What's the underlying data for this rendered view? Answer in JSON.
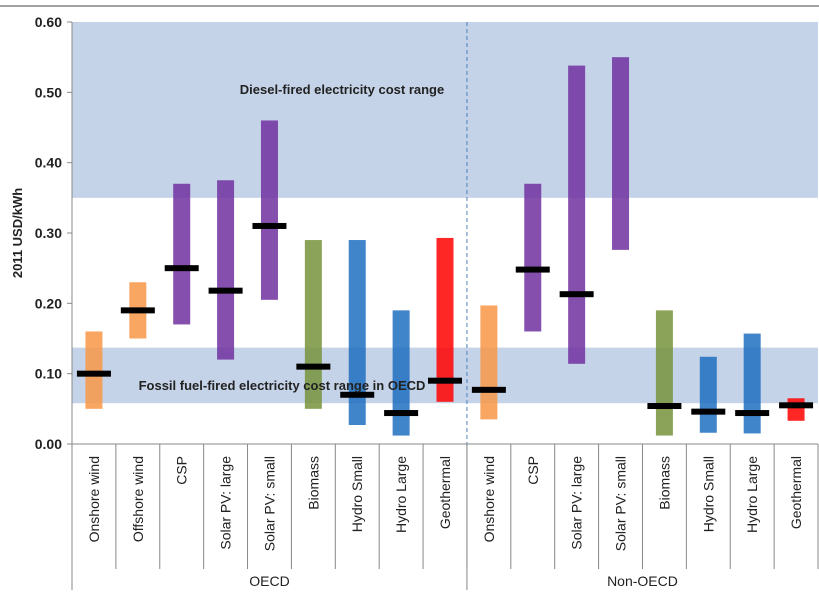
{
  "chart_data": {
    "type": "bar",
    "ylabel": "2011 USD/kWh",
    "ylim": [
      0,
      0.6
    ],
    "yticks": [
      "0.00",
      "0.10",
      "0.20",
      "0.30",
      "0.40",
      "0.50",
      "0.60"
    ],
    "grid": false,
    "groups": [
      {
        "name": "OECD",
        "categories": [
          {
            "label": "Onshore wind",
            "low": 0.05,
            "high": 0.16,
            "avg": 0.1,
            "color": "#F79646"
          },
          {
            "label": "Offshore wind",
            "low": 0.15,
            "high": 0.23,
            "avg": 0.19,
            "color": "#F79646"
          },
          {
            "label": "CSP",
            "low": 0.17,
            "high": 0.37,
            "avg": 0.25,
            "color": "#7030A0"
          },
          {
            "label": "Solar PV: large",
            "low": 0.12,
            "high": 0.375,
            "avg": 0.218,
            "color": "#7030A0"
          },
          {
            "label": "Solar PV: small",
            "low": 0.205,
            "high": 0.46,
            "avg": 0.31,
            "color": "#7030A0"
          },
          {
            "label": "Biomass",
            "low": 0.05,
            "high": 0.29,
            "avg": 0.11,
            "color": "#77933C"
          },
          {
            "label": "Hydro Small",
            "low": 0.027,
            "high": 0.29,
            "avg": 0.07,
            "color": "#1F6FC0"
          },
          {
            "label": "Hydro Large",
            "low": 0.012,
            "high": 0.19,
            "avg": 0.044,
            "color": "#1F6FC0"
          },
          {
            "label": "Geothermal",
            "low": 0.06,
            "high": 0.293,
            "avg": 0.09,
            "color": "#FF0000"
          }
        ]
      },
      {
        "name": "Non-OECD",
        "categories": [
          {
            "label": "Onshore wind",
            "low": 0.035,
            "high": 0.197,
            "avg": 0.077,
            "color": "#F79646"
          },
          {
            "label": "CSP",
            "low": 0.16,
            "high": 0.37,
            "avg": 0.248,
            "color": "#7030A0"
          },
          {
            "label": "Solar PV: large",
            "low": 0.114,
            "high": 0.538,
            "avg": 0.213,
            "color": "#7030A0"
          },
          {
            "label": "Solar PV: small",
            "low": 0.276,
            "high": 0.55,
            "avg": null,
            "color": "#7030A0"
          },
          {
            "label": "Biomass",
            "low": 0.012,
            "high": 0.19,
            "avg": 0.054,
            "color": "#77933C"
          },
          {
            "label": "Hydro Small",
            "low": 0.016,
            "high": 0.124,
            "avg": 0.046,
            "color": "#1F6FC0"
          },
          {
            "label": "Hydro Large",
            "low": 0.015,
            "high": 0.157,
            "avg": 0.044,
            "color": "#1F6FC0"
          },
          {
            "label": "Geothermal",
            "low": 0.033,
            "high": 0.065,
            "avg": 0.055,
            "color": "#FF0000"
          }
        ]
      }
    ],
    "reference_bands": [
      {
        "label": "Diesel-fired electricity cost range",
        "low": 0.35,
        "high": 0.6,
        "color": "#C5D3E8"
      },
      {
        "label": "Fossil fuel-fired electricity cost range in OECD",
        "low": 0.058,
        "high": 0.137,
        "color": "#C5D3E8"
      }
    ]
  }
}
